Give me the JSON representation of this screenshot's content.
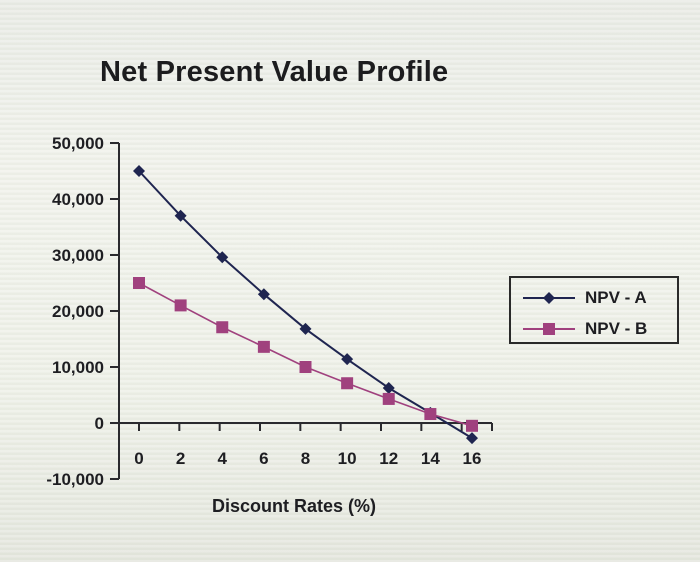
{
  "chart_data": {
    "type": "line",
    "title": "Net Present Value Profile",
    "xlabel": "Discount Rates (%)",
    "ylabel": "",
    "x": [
      0,
      2,
      4,
      6,
      8,
      10,
      12,
      14,
      16
    ],
    "x_tick_labels": [
      "0",
      "2",
      "4",
      "6",
      "8",
      "10",
      "12",
      "14",
      "16"
    ],
    "y_tick_labels": [
      "50,000",
      "40,000",
      "30,000",
      "20,000",
      "10,000",
      "0",
      "-10,000"
    ],
    "y_ticks": [
      50000,
      40000,
      30000,
      20000,
      10000,
      0,
      -10000
    ],
    "ylim": [
      -10000,
      50000
    ],
    "xlim": [
      0,
      16
    ],
    "grid": false,
    "legend_position": "right",
    "series": [
      {
        "name": "NPV - A",
        "color": "#1f2550",
        "marker": "diamond",
        "values": [
          45000,
          37000,
          29600,
          23000,
          16800,
          11400,
          6250,
          1800,
          -2700
        ]
      },
      {
        "name": "NPV - B",
        "color": "#a0417e",
        "marker": "square",
        "values": [
          25000,
          21000,
          17100,
          13600,
          10000,
          7100,
          4300,
          1600,
          -500
        ]
      }
    ]
  },
  "legend": {
    "items": [
      {
        "label": "NPV - A"
      },
      {
        "label": "NPV - B"
      }
    ]
  }
}
